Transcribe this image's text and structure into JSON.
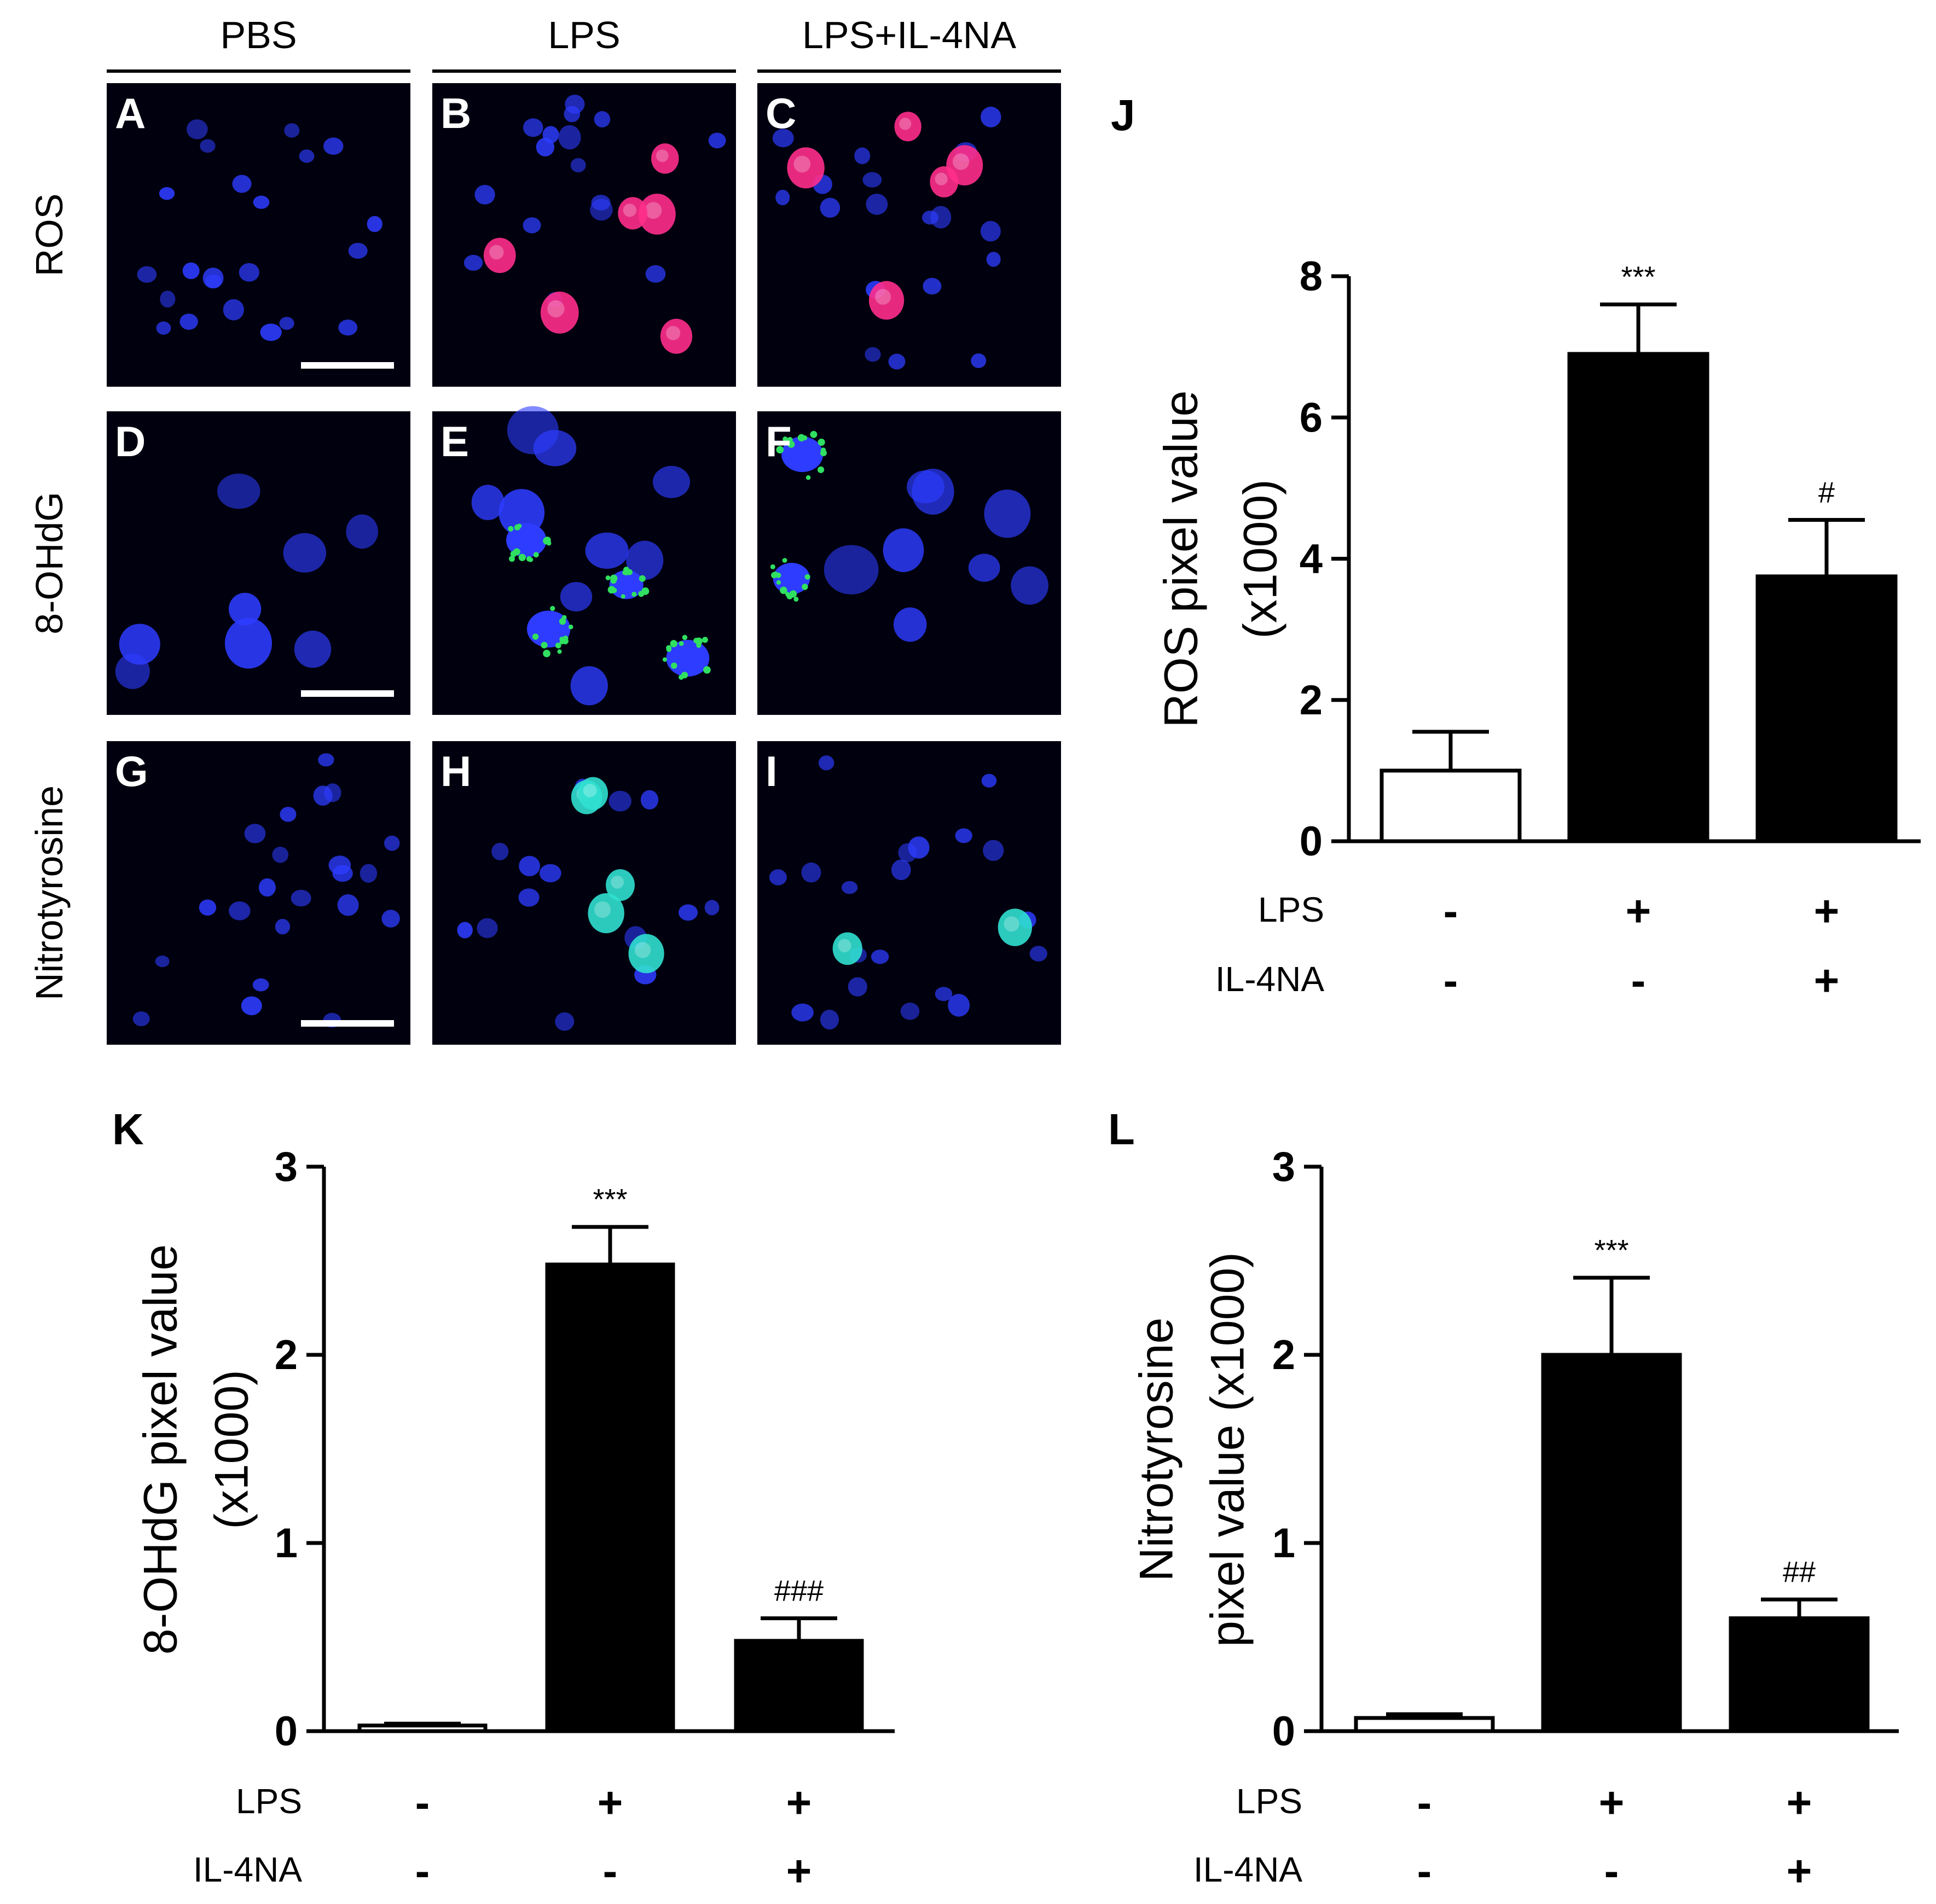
{
  "columns": [
    "PBS",
    "LPS",
    "LPS+IL-4NA"
  ],
  "rows": [
    "ROS",
    "8-OHdG",
    "Nitrotyrosine"
  ],
  "panels": [
    {
      "letter": "A",
      "row": 0,
      "col": 0,
      "stain": "#e0207a",
      "cells": 22,
      "bright": 0,
      "scalebar": true
    },
    {
      "letter": "B",
      "row": 0,
      "col": 1,
      "stain": "#ff2d8c",
      "cells": 16,
      "bright": 6,
      "scalebar": false
    },
    {
      "letter": "C",
      "row": 0,
      "col": 2,
      "stain": "#ff2d8c",
      "cells": 18,
      "bright": 5,
      "scalebar": false
    },
    {
      "letter": "D",
      "row": 1,
      "col": 0,
      "stain": "#30e060",
      "cells": 8,
      "bright": 0,
      "scalebar": true
    },
    {
      "letter": "E",
      "row": 1,
      "col": 1,
      "stain": "#30e060",
      "cells": 9,
      "bright": 4,
      "scalebar": false
    },
    {
      "letter": "F",
      "row": 1,
      "col": 2,
      "stain": "#30e060",
      "cells": 8,
      "bright": 2,
      "scalebar": false
    },
    {
      "letter": "G",
      "row": 2,
      "col": 0,
      "stain": "#30d8c8",
      "cells": 22,
      "bright": 0,
      "scalebar": true
    },
    {
      "letter": "H",
      "row": 2,
      "col": 1,
      "stain": "#30e0d0",
      "cells": 14,
      "bright": 5,
      "scalebar": false
    },
    {
      "letter": "I",
      "row": 2,
      "col": 2,
      "stain": "#30e0d0",
      "cells": 20,
      "bright": 2,
      "scalebar": false
    }
  ],
  "colors": {
    "nucleus": "#2d3cff",
    "background": "#00000f"
  },
  "chart_data": [
    {
      "panel": "J",
      "type": "bar",
      "ylabel": [
        "ROS pixel value",
        "(x1000)"
      ],
      "ylim": [
        0,
        8
      ],
      "yticks": [
        0,
        2,
        4,
        6,
        8
      ],
      "values": [
        1.0,
        6.9,
        3.75
      ],
      "errors": [
        0.55,
        0.7,
        0.8
      ],
      "fills": [
        "#ffffff",
        "#000000",
        "#000000"
      ],
      "annotations": [
        "",
        "***",
        "#"
      ],
      "conditions": [
        {
          "name": "LPS",
          "signs": [
            "-",
            "+",
            "+"
          ]
        },
        {
          "name": "IL-4NA",
          "signs": [
            "-",
            "-",
            "+"
          ]
        }
      ]
    },
    {
      "panel": "K",
      "type": "bar",
      "ylabel": [
        "8-OHdG pixel value",
        "(x1000)"
      ],
      "ylim": [
        0,
        3
      ],
      "yticks": [
        0,
        1,
        2,
        3
      ],
      "values": [
        0.03,
        2.48,
        0.48
      ],
      "errors": [
        0.01,
        0.2,
        0.12
      ],
      "fills": [
        "#ffffff",
        "#000000",
        "#000000"
      ],
      "annotations": [
        "",
        "***",
        "###"
      ],
      "conditions": [
        {
          "name": "LPS",
          "signs": [
            "-",
            "+",
            "+"
          ]
        },
        {
          "name": "IL-4NA",
          "signs": [
            "-",
            "-",
            "+"
          ]
        }
      ]
    },
    {
      "panel": "L",
      "type": "bar",
      "ylabel": [
        "Nitrotyrosine",
        "pixel value (x1000)"
      ],
      "ylim": [
        0,
        3
      ],
      "yticks": [
        0,
        1,
        2,
        3
      ],
      "values": [
        0.07,
        2.0,
        0.6
      ],
      "errors": [
        0.02,
        0.41,
        0.1
      ],
      "fills": [
        "#ffffff",
        "#000000",
        "#000000"
      ],
      "annotations": [
        "",
        "***",
        "##"
      ],
      "conditions": [
        {
          "name": "LPS",
          "signs": [
            "-",
            "+",
            "+"
          ]
        },
        {
          "name": "IL-4NA",
          "signs": [
            "-",
            "-",
            "+"
          ]
        }
      ]
    }
  ]
}
